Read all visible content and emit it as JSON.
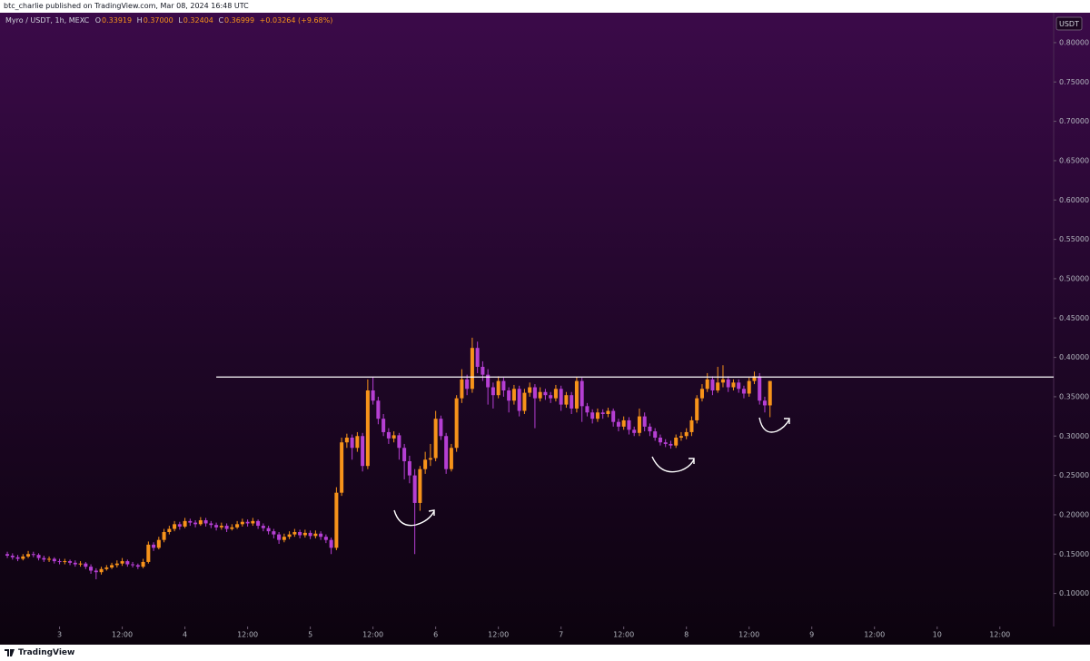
{
  "header": {
    "text": "btc_charlie published on TradingView.com, Mar 08, 2024 16:48 UTC"
  },
  "footer": {
    "brand": "TradingView"
  },
  "readout": {
    "symbol": "Myro / USDT, 1h, MEXC",
    "o_label": "O",
    "open": "0.33919",
    "h_label": "H",
    "high": "0.37000",
    "l_label": "L",
    "low": "0.32404",
    "c_label": "C",
    "close": "0.36999",
    "change": "+0.03264 (+9.68%)"
  },
  "chart_data": {
    "type": "candlestick",
    "currency_label": "USDT",
    "up_color": "#f7931a",
    "down_color": "#b53fd3",
    "ylim": [
      0.058,
      0.838
    ],
    "yticks": [
      {
        "value": 0.1,
        "label": "0.10000"
      },
      {
        "value": 0.15,
        "label": "0.15000"
      },
      {
        "value": 0.2,
        "label": "0.20000"
      },
      {
        "value": 0.25,
        "label": "0.25000"
      },
      {
        "value": 0.3,
        "label": "0.30000"
      },
      {
        "value": 0.35,
        "label": "0.35000"
      },
      {
        "value": 0.4,
        "label": "0.40000"
      },
      {
        "value": 0.45,
        "label": "0.45000"
      },
      {
        "value": 0.5,
        "label": "0.50000"
      },
      {
        "value": 0.55,
        "label": "0.55000"
      },
      {
        "value": 0.6,
        "label": "0.60000"
      },
      {
        "value": 0.65,
        "label": "0.65000"
      },
      {
        "value": 0.7,
        "label": "0.70000"
      },
      {
        "value": 0.75,
        "label": "0.75000"
      },
      {
        "value": 0.8,
        "label": "0.80000"
      }
    ],
    "xlim": [
      -1.4,
      200.3
    ],
    "xticks": [
      {
        "value": 10,
        "label": "3"
      },
      {
        "value": 22,
        "label": "12:00"
      },
      {
        "value": 34,
        "label": "4"
      },
      {
        "value": 46,
        "label": "12:00"
      },
      {
        "value": 58,
        "label": "5"
      },
      {
        "value": 70,
        "label": "12:00"
      },
      {
        "value": 82,
        "label": "6"
      },
      {
        "value": 94,
        "label": "12:00"
      },
      {
        "value": 106,
        "label": "7"
      },
      {
        "value": 118,
        "label": "12:00"
      },
      {
        "value": 130,
        "label": "8"
      },
      {
        "value": 142,
        "label": "12:00"
      },
      {
        "value": 154,
        "label": "9"
      },
      {
        "value": 166,
        "label": "12:00"
      },
      {
        "value": 178,
        "label": "10"
      },
      {
        "value": 190,
        "label": "12:00"
      }
    ],
    "hline": {
      "value": 0.375,
      "x_start": 40,
      "color": "#ffffff"
    },
    "candles": [
      [
        0.15,
        0.153,
        0.145,
        0.148
      ],
      [
        0.148,
        0.151,
        0.143,
        0.146
      ],
      [
        0.146,
        0.149,
        0.141,
        0.144
      ],
      [
        0.144,
        0.15,
        0.142,
        0.147
      ],
      [
        0.147,
        0.154,
        0.145,
        0.15
      ],
      [
        0.15,
        0.153,
        0.146,
        0.149
      ],
      [
        0.149,
        0.151,
        0.142,
        0.145
      ],
      [
        0.145,
        0.148,
        0.14,
        0.143
      ],
      [
        0.143,
        0.147,
        0.14,
        0.144
      ],
      [
        0.144,
        0.146,
        0.138,
        0.141
      ],
      [
        0.141,
        0.144,
        0.137,
        0.14
      ],
      [
        0.14,
        0.144,
        0.137,
        0.141
      ],
      [
        0.141,
        0.143,
        0.136,
        0.139
      ],
      [
        0.139,
        0.142,
        0.134,
        0.137
      ],
      [
        0.137,
        0.141,
        0.134,
        0.138
      ],
      [
        0.138,
        0.14,
        0.131,
        0.134
      ],
      [
        0.134,
        0.137,
        0.125,
        0.129
      ],
      [
        0.129,
        0.132,
        0.118,
        0.127
      ],
      [
        0.127,
        0.134,
        0.124,
        0.131
      ],
      [
        0.131,
        0.136,
        0.129,
        0.133
      ],
      [
        0.133,
        0.139,
        0.131,
        0.136
      ],
      [
        0.136,
        0.142,
        0.133,
        0.138
      ],
      [
        0.138,
        0.145,
        0.135,
        0.141
      ],
      [
        0.141,
        0.143,
        0.134,
        0.137
      ],
      [
        0.137,
        0.14,
        0.133,
        0.136
      ],
      [
        0.136,
        0.138,
        0.131,
        0.134
      ],
      [
        0.134,
        0.144,
        0.132,
        0.14
      ],
      [
        0.14,
        0.166,
        0.138,
        0.162
      ],
      [
        0.162,
        0.165,
        0.154,
        0.158
      ],
      [
        0.158,
        0.172,
        0.156,
        0.168
      ],
      [
        0.168,
        0.182,
        0.165,
        0.178
      ],
      [
        0.178,
        0.186,
        0.175,
        0.182
      ],
      [
        0.182,
        0.192,
        0.179,
        0.188
      ],
      [
        0.188,
        0.191,
        0.181,
        0.185
      ],
      [
        0.185,
        0.196,
        0.183,
        0.192
      ],
      [
        0.192,
        0.195,
        0.186,
        0.19
      ],
      [
        0.19,
        0.193,
        0.184,
        0.188
      ],
      [
        0.188,
        0.197,
        0.186,
        0.193
      ],
      [
        0.193,
        0.196,
        0.185,
        0.189
      ],
      [
        0.189,
        0.192,
        0.183,
        0.187
      ],
      [
        0.187,
        0.19,
        0.18,
        0.184
      ],
      [
        0.184,
        0.19,
        0.181,
        0.186
      ],
      [
        0.186,
        0.189,
        0.178,
        0.182
      ],
      [
        0.182,
        0.188,
        0.18,
        0.184
      ],
      [
        0.184,
        0.192,
        0.182,
        0.188
      ],
      [
        0.188,
        0.195,
        0.185,
        0.191
      ],
      [
        0.191,
        0.194,
        0.185,
        0.189
      ],
      [
        0.189,
        0.196,
        0.186,
        0.192
      ],
      [
        0.192,
        0.194,
        0.182,
        0.186
      ],
      [
        0.186,
        0.189,
        0.179,
        0.183
      ],
      [
        0.183,
        0.186,
        0.175,
        0.179
      ],
      [
        0.179,
        0.182,
        0.17,
        0.175
      ],
      [
        0.175,
        0.178,
        0.163,
        0.168
      ],
      [
        0.168,
        0.176,
        0.165,
        0.172
      ],
      [
        0.172,
        0.179,
        0.169,
        0.175
      ],
      [
        0.175,
        0.182,
        0.172,
        0.178
      ],
      [
        0.178,
        0.181,
        0.17,
        0.174
      ],
      [
        0.174,
        0.181,
        0.171,
        0.177
      ],
      [
        0.177,
        0.18,
        0.169,
        0.173
      ],
      [
        0.173,
        0.18,
        0.17,
        0.176
      ],
      [
        0.176,
        0.179,
        0.168,
        0.172
      ],
      [
        0.172,
        0.175,
        0.164,
        0.168
      ],
      [
        0.168,
        0.171,
        0.15,
        0.158
      ],
      [
        0.158,
        0.235,
        0.155,
        0.228
      ],
      [
        0.228,
        0.298,
        0.224,
        0.292
      ],
      [
        0.292,
        0.303,
        0.285,
        0.298
      ],
      [
        0.298,
        0.302,
        0.27,
        0.285
      ],
      [
        0.285,
        0.305,
        0.28,
        0.3
      ],
      [
        0.3,
        0.304,
        0.255,
        0.262
      ],
      [
        0.262,
        0.372,
        0.258,
        0.358
      ],
      [
        0.358,
        0.375,
        0.34,
        0.345
      ],
      [
        0.345,
        0.35,
        0.315,
        0.322
      ],
      [
        0.322,
        0.328,
        0.3,
        0.305
      ],
      [
        0.305,
        0.31,
        0.29,
        0.297
      ],
      [
        0.297,
        0.306,
        0.292,
        0.301
      ],
      [
        0.301,
        0.304,
        0.27,
        0.285
      ],
      [
        0.285,
        0.29,
        0.245,
        0.268
      ],
      [
        0.268,
        0.275,
        0.24,
        0.25
      ],
      [
        0.25,
        0.258,
        0.15,
        0.215
      ],
      [
        0.215,
        0.262,
        0.205,
        0.258
      ],
      [
        0.258,
        0.28,
        0.252,
        0.27
      ],
      [
        0.27,
        0.29,
        0.262,
        0.272
      ],
      [
        0.272,
        0.332,
        0.268,
        0.322
      ],
      [
        0.322,
        0.326,
        0.295,
        0.3
      ],
      [
        0.3,
        0.304,
        0.252,
        0.258
      ],
      [
        0.258,
        0.29,
        0.255,
        0.285
      ],
      [
        0.285,
        0.352,
        0.28,
        0.348
      ],
      [
        0.348,
        0.385,
        0.342,
        0.372
      ],
      [
        0.372,
        0.378,
        0.352,
        0.36
      ],
      [
        0.36,
        0.425,
        0.355,
        0.412
      ],
      [
        0.412,
        0.42,
        0.38,
        0.388
      ],
      [
        0.388,
        0.395,
        0.37,
        0.378
      ],
      [
        0.378,
        0.385,
        0.34,
        0.362
      ],
      [
        0.362,
        0.368,
        0.335,
        0.352
      ],
      [
        0.352,
        0.376,
        0.348,
        0.37
      ],
      [
        0.37,
        0.374,
        0.35,
        0.358
      ],
      [
        0.358,
        0.362,
        0.33,
        0.345
      ],
      [
        0.345,
        0.365,
        0.34,
        0.36
      ],
      [
        0.36,
        0.364,
        0.325,
        0.332
      ],
      [
        0.332,
        0.36,
        0.328,
        0.355
      ],
      [
        0.355,
        0.368,
        0.35,
        0.362
      ],
      [
        0.362,
        0.366,
        0.31,
        0.348
      ],
      [
        0.348,
        0.362,
        0.344,
        0.356
      ],
      [
        0.356,
        0.36,
        0.346,
        0.352
      ],
      [
        0.352,
        0.356,
        0.342,
        0.348
      ],
      [
        0.348,
        0.365,
        0.344,
        0.36
      ],
      [
        0.36,
        0.364,
        0.332,
        0.34
      ],
      [
        0.34,
        0.356,
        0.336,
        0.352
      ],
      [
        0.352,
        0.356,
        0.328,
        0.335
      ],
      [
        0.335,
        0.375,
        0.33,
        0.37
      ],
      [
        0.37,
        0.374,
        0.318,
        0.338
      ],
      [
        0.338,
        0.342,
        0.325,
        0.33
      ],
      [
        0.33,
        0.334,
        0.316,
        0.322
      ],
      [
        0.322,
        0.335,
        0.318,
        0.33
      ],
      [
        0.33,
        0.334,
        0.322,
        0.328
      ],
      [
        0.328,
        0.336,
        0.324,
        0.332
      ],
      [
        0.332,
        0.335,
        0.312,
        0.318
      ],
      [
        0.318,
        0.322,
        0.306,
        0.312
      ],
      [
        0.312,
        0.325,
        0.308,
        0.32
      ],
      [
        0.32,
        0.324,
        0.302,
        0.308
      ],
      [
        0.308,
        0.312,
        0.3,
        0.304
      ],
      [
        0.304,
        0.335,
        0.3,
        0.325
      ],
      [
        0.325,
        0.33,
        0.306,
        0.312
      ],
      [
        0.312,
        0.316,
        0.3,
        0.306
      ],
      [
        0.306,
        0.31,
        0.294,
        0.298
      ],
      [
        0.298,
        0.302,
        0.288,
        0.292
      ],
      [
        0.292,
        0.296,
        0.286,
        0.29
      ],
      [
        0.29,
        0.294,
        0.284,
        0.288
      ],
      [
        0.288,
        0.302,
        0.285,
        0.298
      ],
      [
        0.298,
        0.305,
        0.294,
        0.3
      ],
      [
        0.3,
        0.31,
        0.296,
        0.305
      ],
      [
        0.305,
        0.325,
        0.3,
        0.32
      ],
      [
        0.32,
        0.352,
        0.316,
        0.348
      ],
      [
        0.348,
        0.366,
        0.344,
        0.36
      ],
      [
        0.36,
        0.38,
        0.356,
        0.372
      ],
      [
        0.372,
        0.376,
        0.352,
        0.358
      ],
      [
        0.358,
        0.388,
        0.355,
        0.368
      ],
      [
        0.368,
        0.39,
        0.362,
        0.372
      ],
      [
        0.372,
        0.376,
        0.356,
        0.362
      ],
      [
        0.362,
        0.372,
        0.358,
        0.368
      ],
      [
        0.368,
        0.372,
        0.355,
        0.36
      ],
      [
        0.36,
        0.364,
        0.348,
        0.354
      ],
      [
        0.354,
        0.374,
        0.35,
        0.37
      ],
      [
        0.37,
        0.382,
        0.366,
        0.376
      ],
      [
        0.376,
        0.38,
        0.34,
        0.345
      ],
      [
        0.345,
        0.35,
        0.33,
        0.339
      ],
      [
        0.339,
        0.37,
        0.324,
        0.37
      ]
    ]
  }
}
